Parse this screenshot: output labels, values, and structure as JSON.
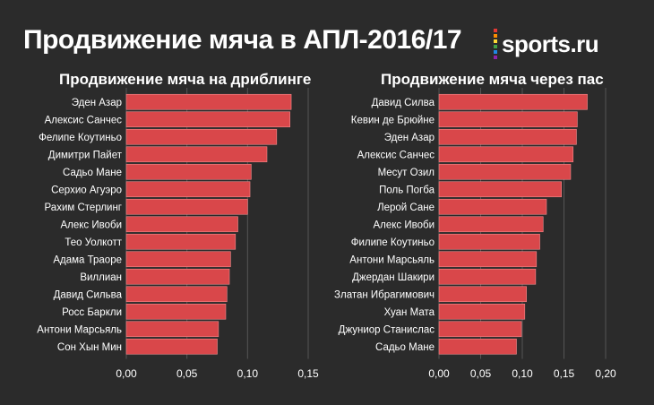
{
  "title": "Продвижение мяча в АПЛ-2016/17",
  "logo": {
    "text": "sports.ru",
    "stripe_colors": [
      "#e53935",
      "#fb8c00",
      "#fdd835",
      "#43a047",
      "#1e88e5",
      "#8e24aa"
    ]
  },
  "colors": {
    "background": "#2b2b2b",
    "bar": "#d9474a",
    "bar_edge": "#f08a8c",
    "grid": "#555555",
    "text": "#ffffff"
  },
  "chart_data": [
    {
      "type": "bar",
      "orientation": "horizontal",
      "title": "Продвижение мяча на дриблинге",
      "categories": [
        "Эден Азар",
        "Алексис Санчес",
        "Фелипе Коутиньо",
        "Димитри Пайет",
        "Садьо Мане",
        "Серхио Агуэро",
        "Рахим Стерлинг",
        "Алекс Ивоби",
        "Тео Уолкотт",
        "Адама Траоре",
        "Виллиан",
        "Давид Сильва",
        "Росс Баркли",
        "Антони Марсьяль",
        "Сон Хын Мин"
      ],
      "values": [
        0.136,
        0.135,
        0.124,
        0.116,
        0.103,
        0.102,
        0.1,
        0.092,
        0.09,
        0.086,
        0.085,
        0.083,
        0.082,
        0.076,
        0.075
      ],
      "xlim": [
        0,
        0.15
      ],
      "xticks": [
        0,
        0.05,
        0.1,
        0.15
      ],
      "xtick_labels": [
        "0,00",
        "0,05",
        "0,10",
        "0,15"
      ],
      "grid": true
    },
    {
      "type": "bar",
      "orientation": "horizontal",
      "title": "Продвижение мяча через пас",
      "categories": [
        "Давид Силва",
        "Кевин де Брюйне",
        "Эден Азар",
        "Алексис Санчес",
        "Месут Озил",
        "Поль Погба",
        "Лерой Сане",
        "Алекс Ивоби",
        "Филипе Коутиньо",
        "Антони Марсьяль",
        "Джердан Шакири",
        "Златан Ибрагимович",
        "Хуан Мата",
        "Джуниор Станислас",
        "Садьо Мане"
      ],
      "values": [
        0.178,
        0.166,
        0.165,
        0.161,
        0.158,
        0.147,
        0.129,
        0.125,
        0.121,
        0.117,
        0.116,
        0.105,
        0.103,
        0.099,
        0.093
      ],
      "xlim": [
        0,
        0.2
      ],
      "xticks": [
        0,
        0.05,
        0.1,
        0.15,
        0.2
      ],
      "xtick_labels": [
        "0,00",
        "0,05",
        "0,10",
        "0,15",
        "0,20"
      ],
      "grid": true
    }
  ]
}
